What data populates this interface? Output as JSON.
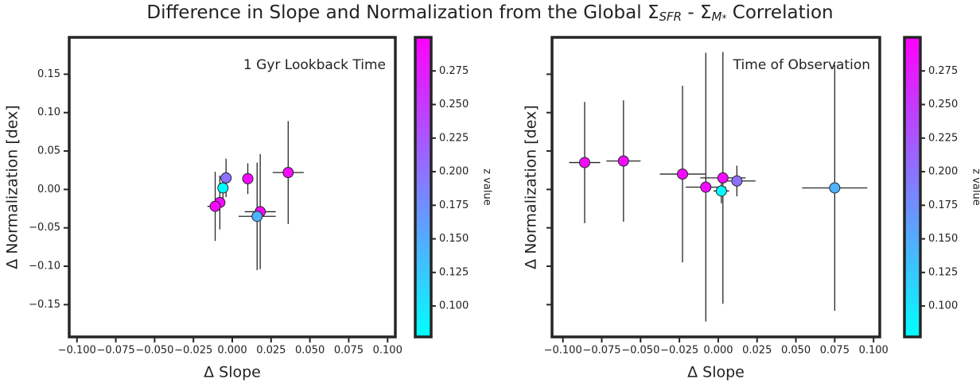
{
  "title": [
    "Difference in Slope and Normalization from the Global Σ",
    "SFR",
    " - Σ",
    "M",
    "*",
    " Correlation"
  ],
  "chart_data": [
    {
      "type": "scatter",
      "annotation": "1 Gyr Lookback Time",
      "xlabel": "Δ Slope",
      "ylabel": "Δ Normalization [dex]",
      "colorbar_label": "z value",
      "colormap": "cool",
      "show_ytick_labels": true,
      "xlim": [
        -0.105,
        0.105
      ],
      "ylim": [
        -0.192,
        0.198
      ],
      "zlim": [
        0.077,
        0.3
      ],
      "xticks": [
        {
          "value": -0.1,
          "label": "−0.100"
        },
        {
          "value": -0.075,
          "label": "−0.075"
        },
        {
          "value": -0.05,
          "label": "−0.050"
        },
        {
          "value": -0.025,
          "label": "−0.025"
        },
        {
          "value": 0,
          "label": "0.000"
        },
        {
          "value": 0.025,
          "label": "0.025"
        },
        {
          "value": 0.05,
          "label": "0.050"
        },
        {
          "value": 0.075,
          "label": "0.075"
        },
        {
          "value": 0.1,
          "label": "0.100"
        }
      ],
      "yticks": [
        {
          "value": -0.15,
          "label": "−0.15"
        },
        {
          "value": -0.1,
          "label": "−0.10"
        },
        {
          "value": -0.05,
          "label": "−0.05"
        },
        {
          "value": 0,
          "label": "0.00"
        },
        0.05,
        {
          "value": 0.1,
          "label": "0.10"
        },
        0.15
      ],
      "zticks": [
        {
          "value": 0.1,
          "label": "0.100"
        },
        0.125,
        {
          "value": 0.15,
          "label": "0.150"
        },
        0.175,
        {
          "value": 0.2,
          "label": "0.200"
        },
        0.225,
        {
          "value": 0.25,
          "label": "0.250"
        },
        0.275
      ],
      "x": [
        0.036,
        0.01,
        -0.004,
        -0.006,
        -0.008,
        -0.011,
        0.018,
        0.016
      ],
      "values": [
        0.022,
        0.014,
        0.015,
        0.002,
        -0.017,
        -0.022,
        -0.029,
        -0.035
      ],
      "xerr": [
        0.01,
        0.002,
        0.003,
        0.002,
        0.003,
        0.005,
        0.01,
        0.012
      ],
      "yerr": [
        0.067,
        0.02,
        0.025,
        0.015,
        0.035,
        0.045,
        0.075,
        0.07
      ],
      "z": [
        0.29,
        0.29,
        0.2,
        0.08,
        0.29,
        0.29,
        0.29,
        0.144
      ]
    },
    {
      "type": "scatter",
      "annotation": "Time of Observation",
      "xlabel": "Δ Slope",
      "ylabel": "Δ Normalization [dex]",
      "colorbar_label": "z value",
      "colormap": "cool",
      "show_ytick_labels": false,
      "xlim": [
        -0.107,
        0.104
      ],
      "ylim": [
        -0.192,
        0.198
      ],
      "zlim": [
        0.077,
        0.3
      ],
      "xticks": [
        {
          "value": -0.1,
          "label": "−0.100"
        },
        {
          "value": -0.075,
          "label": "−0.075"
        },
        {
          "value": -0.05,
          "label": "−0.050"
        },
        {
          "value": -0.025,
          "label": "−0.025"
        },
        {
          "value": 0,
          "label": "0.000"
        },
        {
          "value": 0.025,
          "label": "0.025"
        },
        {
          "value": 0.05,
          "label": "0.050"
        },
        {
          "value": 0.075,
          "label": "0.075"
        },
        {
          "value": 0.1,
          "label": "0.100"
        }
      ],
      "yticks": [
        -0.15,
        -0.1,
        -0.05,
        0,
        0.05,
        0.1,
        0.15
      ],
      "zticks": [
        {
          "value": 0.1,
          "label": "0.100"
        },
        0.125,
        {
          "value": 0.15,
          "label": "0.150"
        },
        0.175,
        {
          "value": 0.2,
          "label": "0.200"
        },
        0.225,
        {
          "value": 0.25,
          "label": "0.250"
        },
        0.275
      ],
      "x": [
        -0.086,
        -0.061,
        -0.023,
        0.003,
        -0.008,
        0.002,
        0.012,
        0.075
      ],
      "values": [
        0.035,
        0.037,
        0.02,
        0.015,
        0.003,
        -0.002,
        0.011,
        0.002
      ],
      "xerr": [
        0.01,
        0.011,
        0.0146,
        0.0146,
        0.013,
        0.005,
        0.012,
        0.021
      ],
      "yerr": [
        0.079,
        0.079,
        0.115,
        0.164,
        0.175,
        0.016,
        0.02,
        0.16
      ],
      "z": [
        0.29,
        0.29,
        0.29,
        0.29,
        0.29,
        0.08,
        0.2,
        0.144
      ]
    }
  ]
}
